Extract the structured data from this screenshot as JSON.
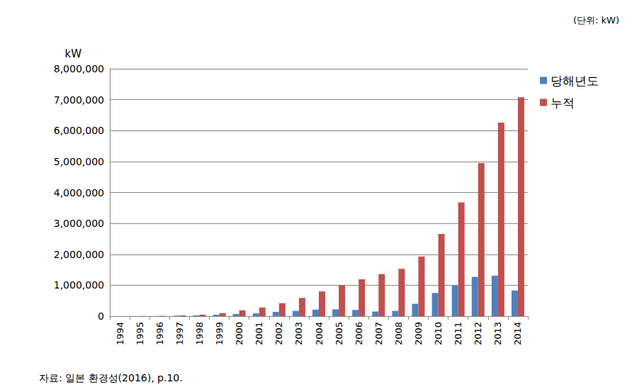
{
  "chart_data": {
    "type": "bar",
    "y_label": "kW",
    "annotations": [
      "(단위: kW)",
      "자료: 일본 환경성(2016), p.10."
    ],
    "categories": [
      "1994",
      "1995",
      "1996",
      "1997",
      "1998",
      "1999",
      "2000",
      "2001",
      "2002",
      "2003",
      "2004",
      "2005",
      "2006",
      "2007",
      "2008",
      "2009",
      "2010",
      "2011",
      "2012",
      "2013",
      "2014"
    ],
    "series": [
      {
        "name": "당해년도",
        "color": "#4f81bd",
        "values": [
          2000,
          3000,
          5000,
          15000,
          25000,
          45000,
          70000,
          90000,
          140000,
          170000,
          210000,
          220000,
          200000,
          150000,
          170000,
          400000,
          750000,
          1000000,
          1270000,
          1310000,
          830000
        ]
      },
      {
        "name": "누적",
        "color": "#c0504d",
        "values": [
          2000,
          5000,
          10000,
          25000,
          50000,
          100000,
          190000,
          280000,
          420000,
          590000,
          800000,
          1000000,
          1190000,
          1360000,
          1530000,
          1930000,
          2660000,
          3680000,
          4950000,
          6260000,
          7080000
        ]
      }
    ],
    "ylim": [
      0,
      8000000
    ],
    "yticks": [
      0,
      {
        "value": 1000000,
        "label": "1,000,000"
      },
      {
        "value": 2000000,
        "label": "2,000,000"
      },
      {
        "value": 3000000,
        "label": "3,000,000"
      },
      {
        "value": 4000000,
        "label": "4,000,000"
      },
      {
        "value": 5000000,
        "label": "5,000,000"
      },
      {
        "value": 6000000,
        "label": "6,000,000"
      },
      {
        "value": 7000000,
        "label": "7,000,000"
      },
      {
        "value": 8000000,
        "label": "8,000,000"
      }
    ],
    "grid": true,
    "legend": "right"
  }
}
